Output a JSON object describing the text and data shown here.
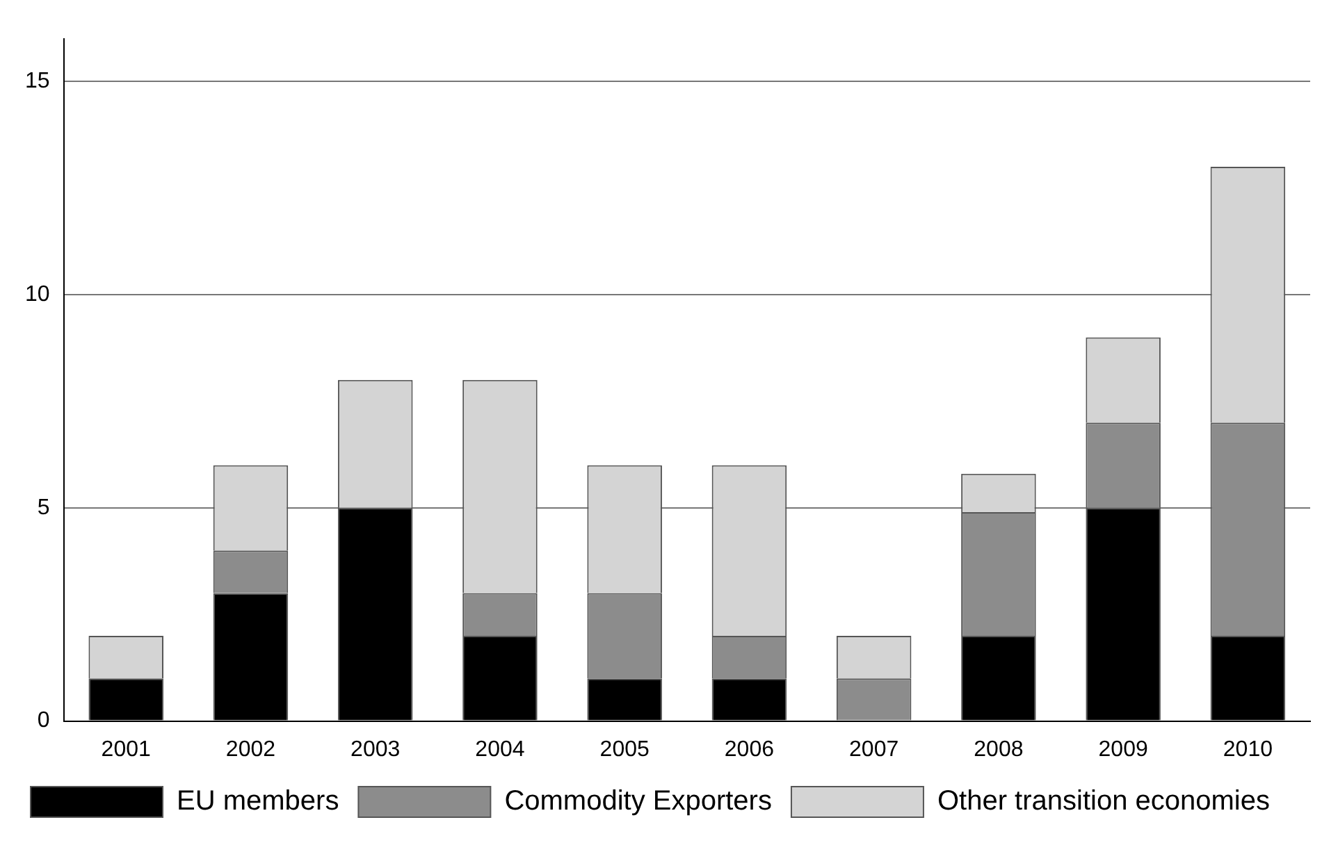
{
  "chart_data": {
    "type": "bar",
    "stacked": true,
    "categories": [
      "2001",
      "2002",
      "2003",
      "2004",
      "2005",
      "2006",
      "2007",
      "2008",
      "2009",
      "2010"
    ],
    "series": [
      {
        "name": "EU members",
        "color": "#000000",
        "values": [
          1,
          3,
          5,
          2,
          1,
          1,
          0,
          2,
          5,
          2
        ]
      },
      {
        "name": "Commodity Exporters",
        "color": "#8c8c8c",
        "values": [
          0,
          1,
          0,
          1,
          2,
          1,
          1,
          2.9,
          2,
          5
        ]
      },
      {
        "name": "Other transition economies",
        "color": "#d4d4d4",
        "values": [
          1,
          2,
          3,
          5,
          3,
          4,
          1,
          0.9,
          2,
          6
        ]
      }
    ],
    "ylim": [
      0,
      16
    ],
    "yticks": [
      0,
      5,
      10,
      15
    ],
    "grid": "y",
    "legend": "bottom"
  }
}
